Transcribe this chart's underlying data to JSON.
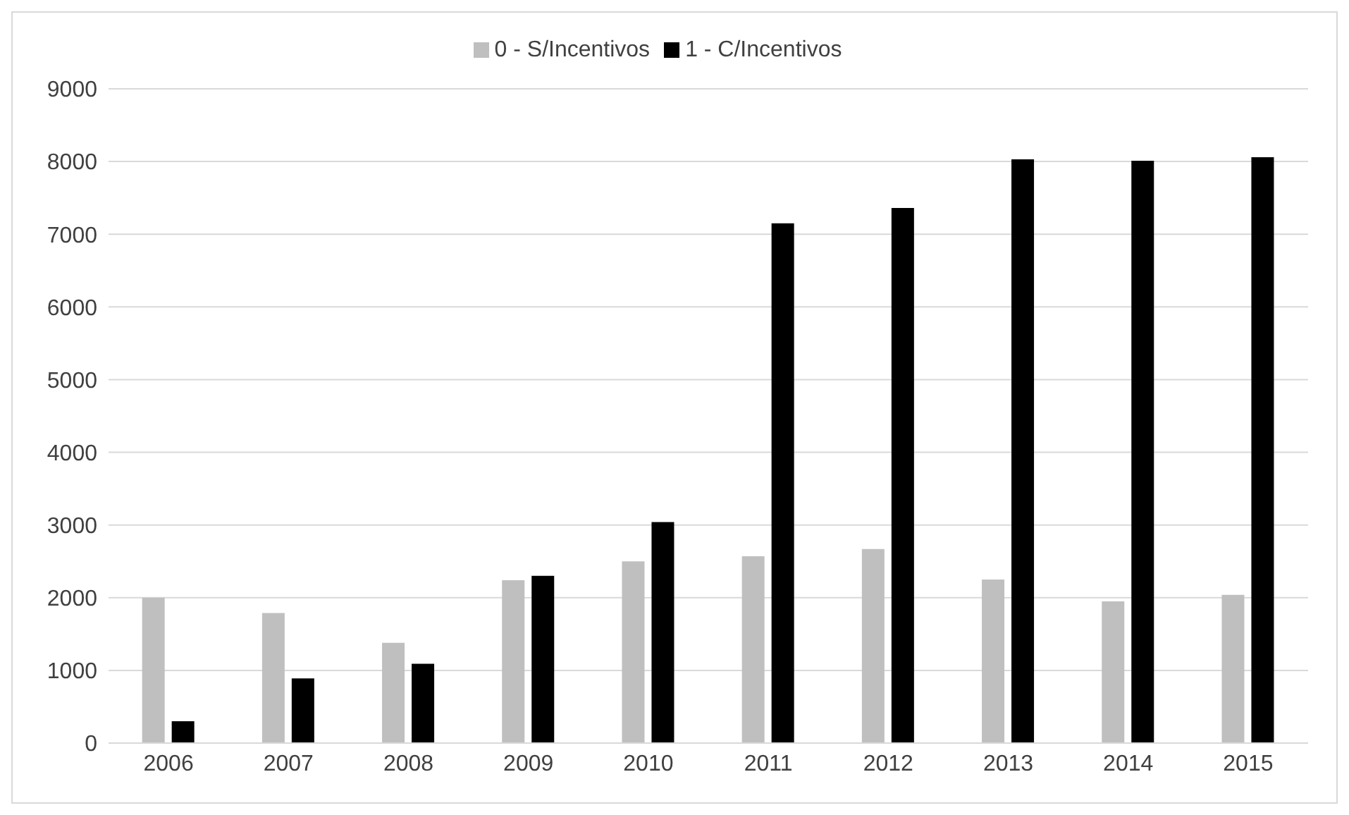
{
  "chart_data": {
    "type": "bar",
    "categories": [
      "2006",
      "2007",
      "2008",
      "2009",
      "2010",
      "2011",
      "2012",
      "2013",
      "2014",
      "2015"
    ],
    "series": [
      {
        "name": "0 - S/Incentivos",
        "color": "#bfbfbf",
        "values": [
          2000,
          1790,
          1380,
          2240,
          2500,
          2570,
          2670,
          2250,
          1950,
          2040
        ]
      },
      {
        "name": "1 - C/Incentivos",
        "color": "#000000",
        "values": [
          300,
          890,
          1090,
          2300,
          3040,
          7150,
          7360,
          8030,
          8010,
          8060
        ]
      }
    ],
    "ylim": [
      0,
      9000
    ],
    "yticks": [
      0,
      1000,
      2000,
      3000,
      4000,
      5000,
      6000,
      7000,
      8000,
      9000
    ],
    "grid": "y",
    "legend": "top"
  }
}
